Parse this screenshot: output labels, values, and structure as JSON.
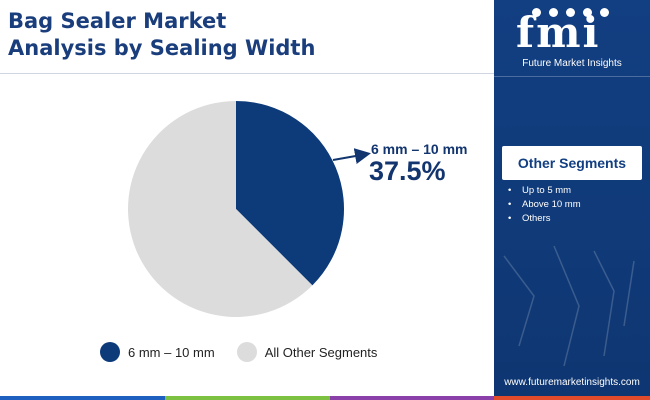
{
  "header": {
    "title_line1": "Bag Sealer Market",
    "title_line2": "Analysis by Sealing Width"
  },
  "chart_data": {
    "type": "pie",
    "slices": [
      {
        "label": "6 mm – 10 mm",
        "value": 37.5,
        "color": "#0d3b7a"
      },
      {
        "label": "All Other Segments",
        "value": 62.5,
        "color": "#dcdcdc"
      }
    ],
    "start_angle_deg": 0,
    "direction": "clockwise",
    "annotation": {
      "label": "6 mm – 10 mm",
      "value": "37.5%"
    },
    "legend": {
      "position": "bottom",
      "entries": [
        "6 mm – 10 mm",
        "All Other Segments"
      ]
    }
  },
  "sidebar": {
    "logo_text": "fmi",
    "logo_subtitle": "Future Market Insights",
    "segments_title": "Other Segments",
    "segments": [
      "Up to 5 mm",
      "Above 10 mm",
      "Others"
    ],
    "website": "www.futuremarketinsights.com"
  },
  "colors": {
    "title": "#1a3d7c",
    "sidebar_bg": "#123f82",
    "strip": [
      "#1f5fbf",
      "#7cc142",
      "#8b3fa8",
      "#e04b2b"
    ]
  }
}
